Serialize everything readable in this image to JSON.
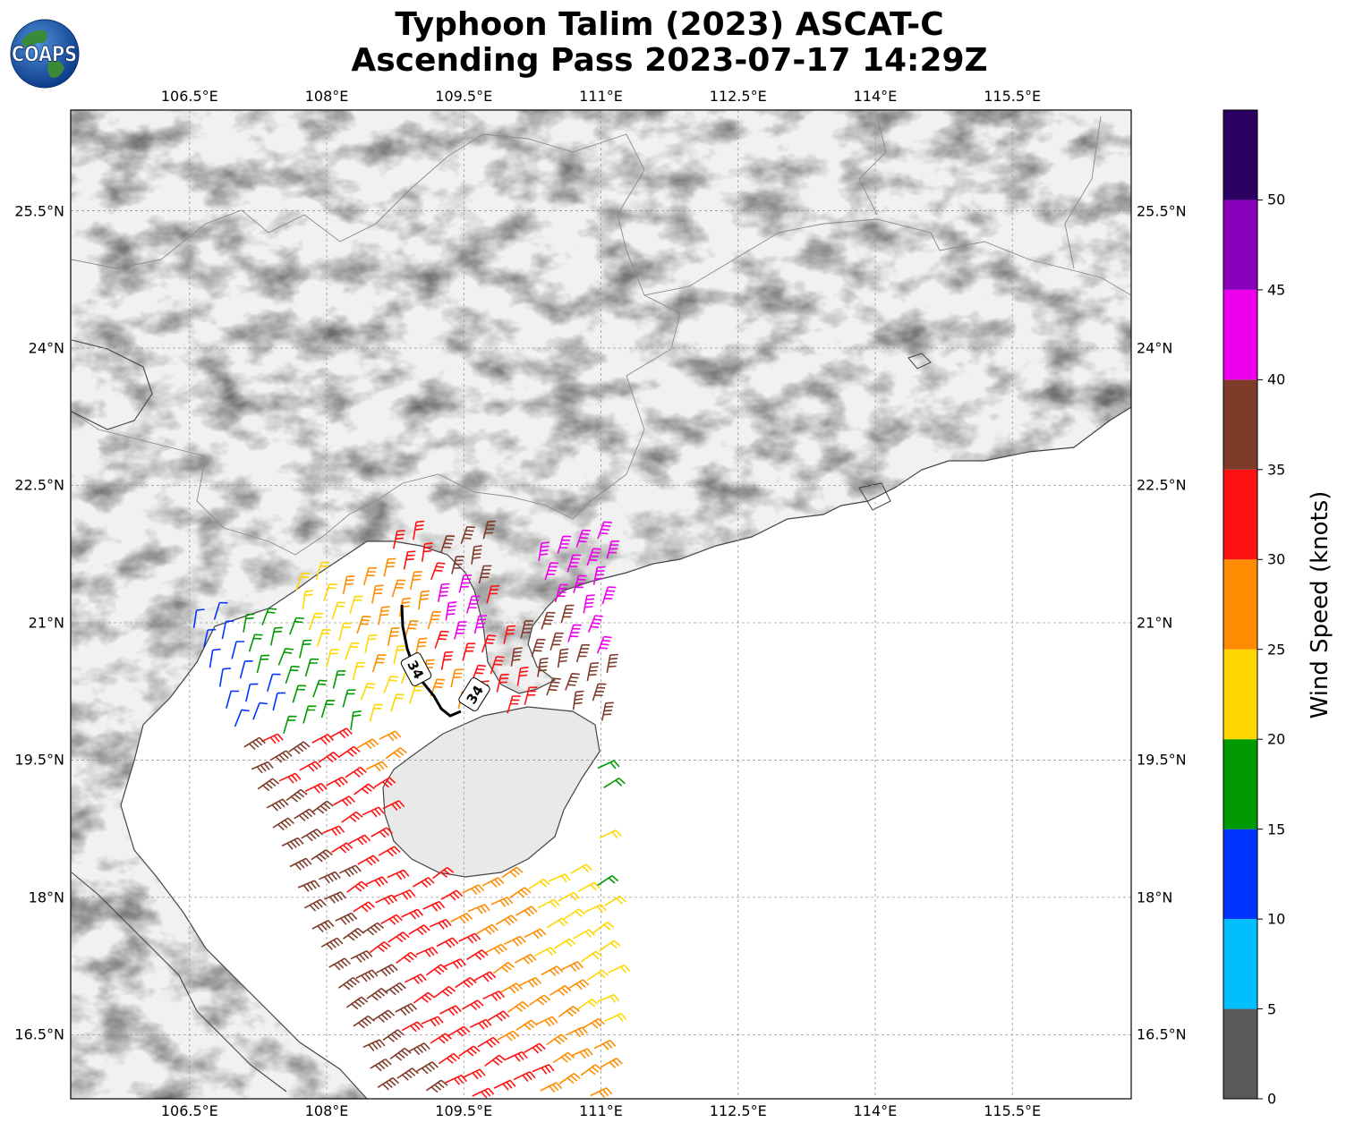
{
  "title": {
    "line1": "Typhoon Talim (2023) ASCAT-C",
    "line2": "Ascending Pass 2023-07-17 14:29Z"
  },
  "logo": {
    "text": "COAPS"
  },
  "map": {
    "lon_range": [
      105.2,
      116.8
    ],
    "lat_range": [
      15.8,
      26.6
    ],
    "lon_ticks": [
      "106.5°E",
      "108°E",
      "109.5°E",
      "111°E",
      "112.5°E",
      "114°E",
      "115.5°E"
    ],
    "lat_ticks": [
      "25.5°N",
      "24°N",
      "22.5°N",
      "21°N",
      "19.5°N",
      "18°N",
      "16.5°N"
    ],
    "gridlines": true,
    "background": "grayscale terrain",
    "contour_label": "34",
    "contour_labels": [
      "34",
      "34"
    ]
  },
  "colorbar": {
    "label": "Wind Speed (knots)",
    "ticks": [
      "0",
      "5",
      "10",
      "15",
      "20",
      "25",
      "30",
      "35",
      "40",
      "45",
      "50"
    ],
    "bins": [
      {
        "min": 0,
        "max": 5,
        "color": "#595959"
      },
      {
        "min": 5,
        "max": 10,
        "color": "#00bfff"
      },
      {
        "min": 10,
        "max": 15,
        "color": "#0033ff"
      },
      {
        "min": 15,
        "max": 20,
        "color": "#009900"
      },
      {
        "min": 20,
        "max": 25,
        "color": "#ffd700"
      },
      {
        "min": 25,
        "max": 30,
        "color": "#ff8c00"
      },
      {
        "min": 30,
        "max": 35,
        "color": "#ff1111"
      },
      {
        "min": 35,
        "max": 40,
        "color": "#7f3b2a"
      },
      {
        "min": 40,
        "max": 45,
        "color": "#ee00ee"
      },
      {
        "min": 45,
        "max": 50,
        "color": "#8800bb"
      },
      {
        "min": 50,
        "max": 55,
        "color": "#2a0060"
      }
    ]
  }
}
